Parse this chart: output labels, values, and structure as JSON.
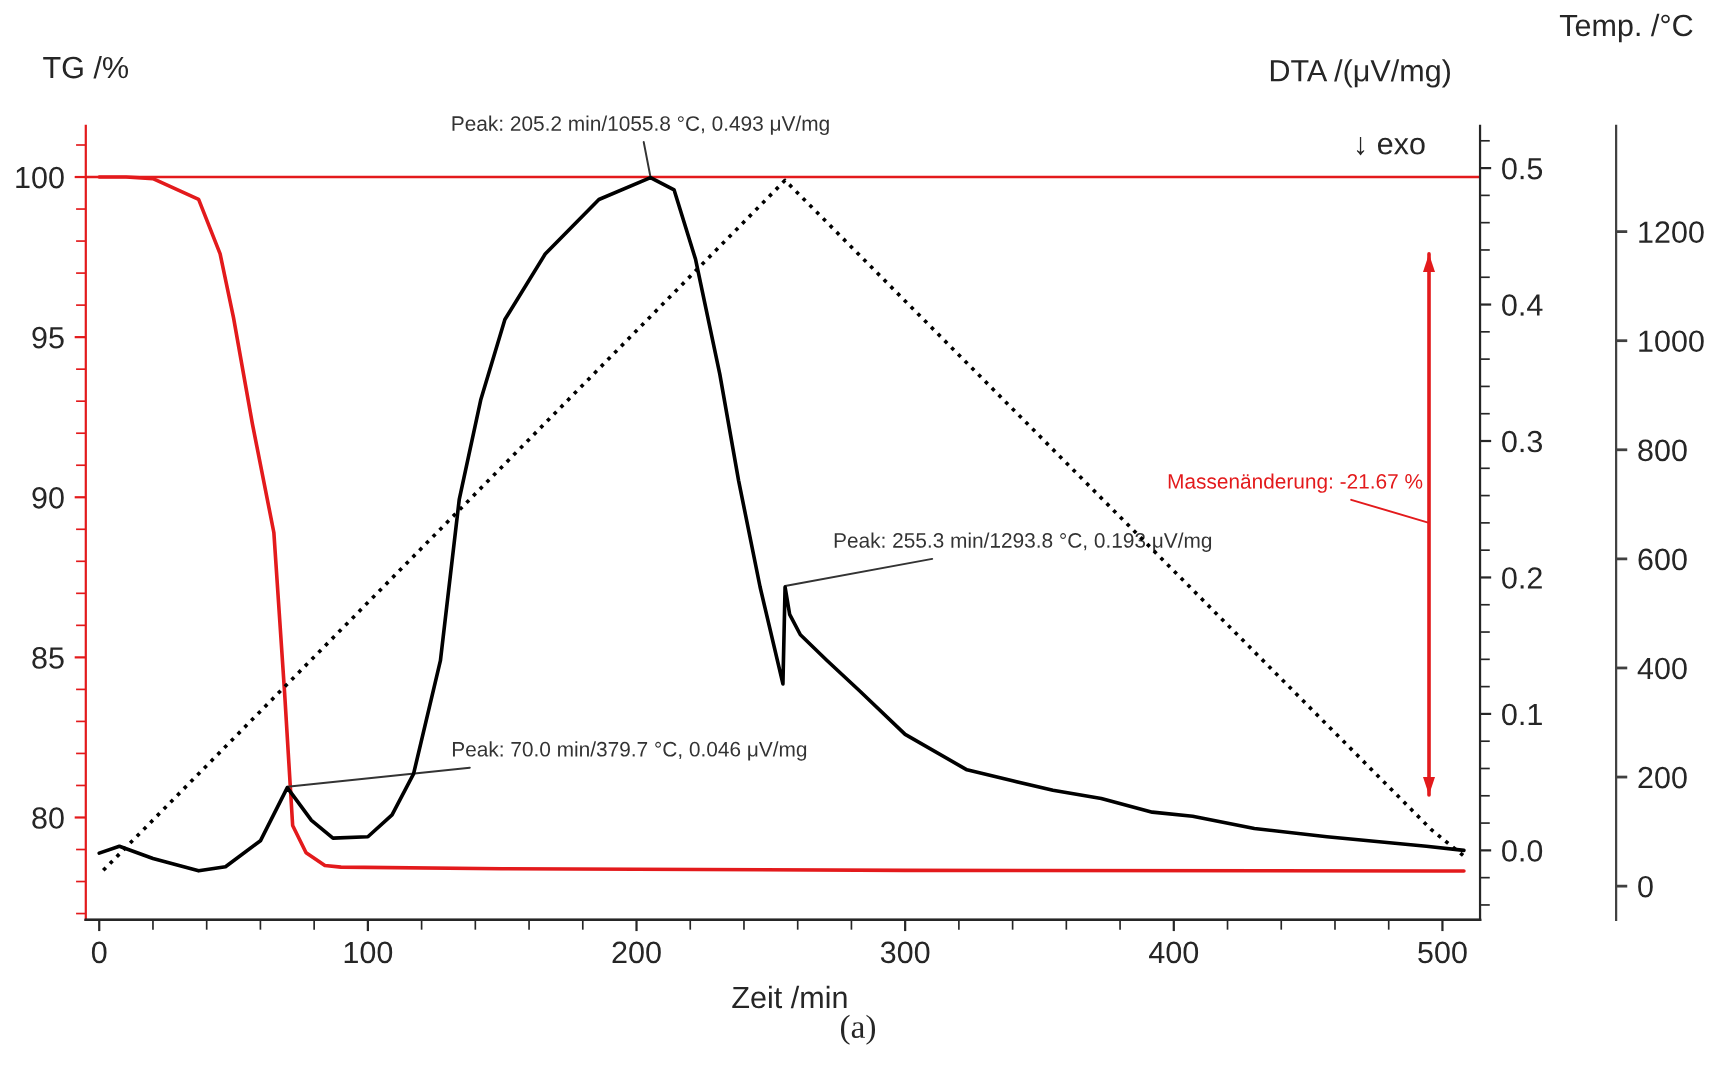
{
  "chart_data": {
    "type": "line",
    "xlabel": "Zeit /min",
    "ylabel": "TG /%",
    "y2label": "DTA /(μV/mg)",
    "y3label": "Temp. /°C",
    "xlim": [
      -5,
      514
    ],
    "xticks": [
      0,
      {
        "value": 20,
        "label": null
      },
      {
        "value": 40,
        "label": null
      },
      {
        "value": 60,
        "label": null
      },
      {
        "value": 80,
        "label": null
      },
      100,
      {
        "value": 120,
        "label": null
      },
      {
        "value": 140,
        "label": null
      },
      {
        "value": 160,
        "label": null
      },
      {
        "value": 180,
        "label": null
      },
      200,
      {
        "value": 220,
        "label": null
      },
      {
        "value": 240,
        "label": null
      },
      {
        "value": 260,
        "label": null
      },
      {
        "value": 280,
        "label": null
      },
      300,
      {
        "value": 320,
        "label": null
      },
      {
        "value": 340,
        "label": null
      },
      {
        "value": 360,
        "label": null
      },
      {
        "value": 380,
        "label": null
      },
      400,
      {
        "value": 420,
        "label": null
      },
      {
        "value": 440,
        "label": null
      },
      {
        "value": 460,
        "label": null
      },
      {
        "value": 480,
        "label": null
      },
      500
    ],
    "ylim": [
      76.8,
      101.6
    ],
    "yticks": [
      {
        "value": 77,
        "label": null
      },
      {
        "value": 78,
        "label": null
      },
      {
        "value": 79,
        "label": null
      },
      80,
      {
        "value": 81,
        "label": null
      },
      {
        "value": 82,
        "label": null
      },
      {
        "value": 83,
        "label": null
      },
      {
        "value": 84,
        "label": null
      },
      85,
      {
        "value": 86,
        "label": null
      },
      {
        "value": 87,
        "label": null
      },
      {
        "value": 88,
        "label": null
      },
      {
        "value": 89,
        "label": null
      },
      90,
      {
        "value": 91,
        "label": null
      },
      {
        "value": 92,
        "label": null
      },
      {
        "value": 93,
        "label": null
      },
      {
        "value": 94,
        "label": null
      },
      95,
      {
        "value": 96,
        "label": null
      },
      {
        "value": 97,
        "label": null
      },
      {
        "value": 98,
        "label": null
      },
      {
        "value": 99,
        "label": null
      },
      100,
      {
        "value": 101,
        "label": null
      }
    ],
    "y2lim": [
      -0.051,
      0.531
    ],
    "y2ticks": [
      {
        "value": -0.04,
        "label": null
      },
      {
        "value": -0.02,
        "label": null
      },
      {
        "value": 0,
        "label": "0.0"
      },
      {
        "value": 0.02,
        "label": null
      },
      {
        "value": 0.04,
        "label": null
      },
      {
        "value": 0.06,
        "label": null
      },
      {
        "value": 0.08,
        "label": null
      },
      0.1,
      {
        "value": 0.12,
        "label": null
      },
      {
        "value": 0.14,
        "label": null
      },
      {
        "value": 0.16,
        "label": null
      },
      {
        "value": 0.18,
        "label": null
      },
      0.2,
      {
        "value": 0.22,
        "label": null
      },
      {
        "value": 0.24,
        "label": null
      },
      {
        "value": 0.26,
        "label": null
      },
      {
        "value": 0.28,
        "label": null
      },
      0.3,
      {
        "value": 0.32,
        "label": null
      },
      {
        "value": 0.34,
        "label": null
      },
      {
        "value": 0.36,
        "label": null
      },
      {
        "value": 0.38,
        "label": null
      },
      0.4,
      {
        "value": 0.42,
        "label": null
      },
      {
        "value": 0.44,
        "label": null
      },
      {
        "value": 0.46,
        "label": null
      },
      {
        "value": 0.48,
        "label": null
      },
      0.5,
      {
        "value": 0.52,
        "label": null
      }
    ],
    "y3lim": [
      -62,
      1394
    ],
    "y3ticks": [
      0,
      200,
      400,
      600,
      800,
      1000,
      1200
    ],
    "series": [
      {
        "color": "#e31a1c",
        "x": [
          0,
          10,
          20,
          37,
          45,
          50,
          57,
          65,
          69,
          72,
          77,
          84,
          90,
          150,
          300,
          500,
          508
        ],
        "values": [
          100,
          100,
          99.95,
          99.3,
          97.6,
          95.6,
          92.3,
          88.9,
          83.9,
          79.75,
          78.9,
          78.5,
          78.45,
          78.4,
          78.35,
          78.33,
          78.33
        ]
      },
      {
        "color": "#000000",
        "axis": "y2",
        "x": [
          0,
          7.5,
          20,
          37,
          47,
          60,
          70,
          79,
          87,
          100,
          109,
          117,
          127,
          134,
          142,
          151,
          166,
          186,
          205.2,
          214,
          222,
          231,
          238,
          246,
          254.5,
          255.3,
          257,
          261,
          271,
          283,
          300,
          323,
          340,
          355,
          373,
          392,
          407,
          430,
          457,
          494,
          508
        ],
        "values": [
          -0.002,
          0.003,
          -0.006,
          -0.015,
          -0.012,
          0.007,
          0.046,
          0.022,
          0.009,
          0.01,
          0.026,
          0.056,
          0.139,
          0.257,
          0.33,
          0.389,
          0.437,
          0.477,
          0.493,
          0.484,
          0.433,
          0.349,
          0.271,
          0.193,
          0.122,
          0.193,
          0.173,
          0.158,
          0.139,
          0.117,
          0.085,
          0.059,
          0.051,
          0.044,
          0.038,
          0.028,
          0.025,
          0.016,
          0.01,
          0.003,
          0.0
        ]
      },
      {
        "color": "#000000",
        "axis": "y3",
        "line_style": "dotted",
        "x": [
          1.5,
          255.3,
          496,
          508
        ],
        "values": [
          29,
          1294,
          103,
          55
        ]
      },
      {
        "color": "#e31a1c",
        "x": [
          495,
          495
        ],
        "values": [
          80.7,
          97.6
        ]
      }
    ],
    "ref_lines": [
      {
        "axis": "y",
        "value": 100,
        "color": "#e31a1c"
      }
    ],
    "annotations": [
      {
        "text": "Peak: 205.2 min/1055.8 °C, 0.493 μV/mg",
        "x": 205.2,
        "y": 100.0
      },
      {
        "text": "Peak: 255.3 min/1293.8 °C, 0.193 μV/mg",
        "x": 255.3,
        "y": 87.23
      },
      {
        "text": "Peak: 70.0 min/379.7 °C, 0.046 μV/mg",
        "x": 70.0,
        "y": 80.96
      },
      {
        "text": "Massenänderung: -21.67 %",
        "x": 495,
        "y": 89.2
      },
      "↓ exo",
      "(a)"
    ]
  }
}
